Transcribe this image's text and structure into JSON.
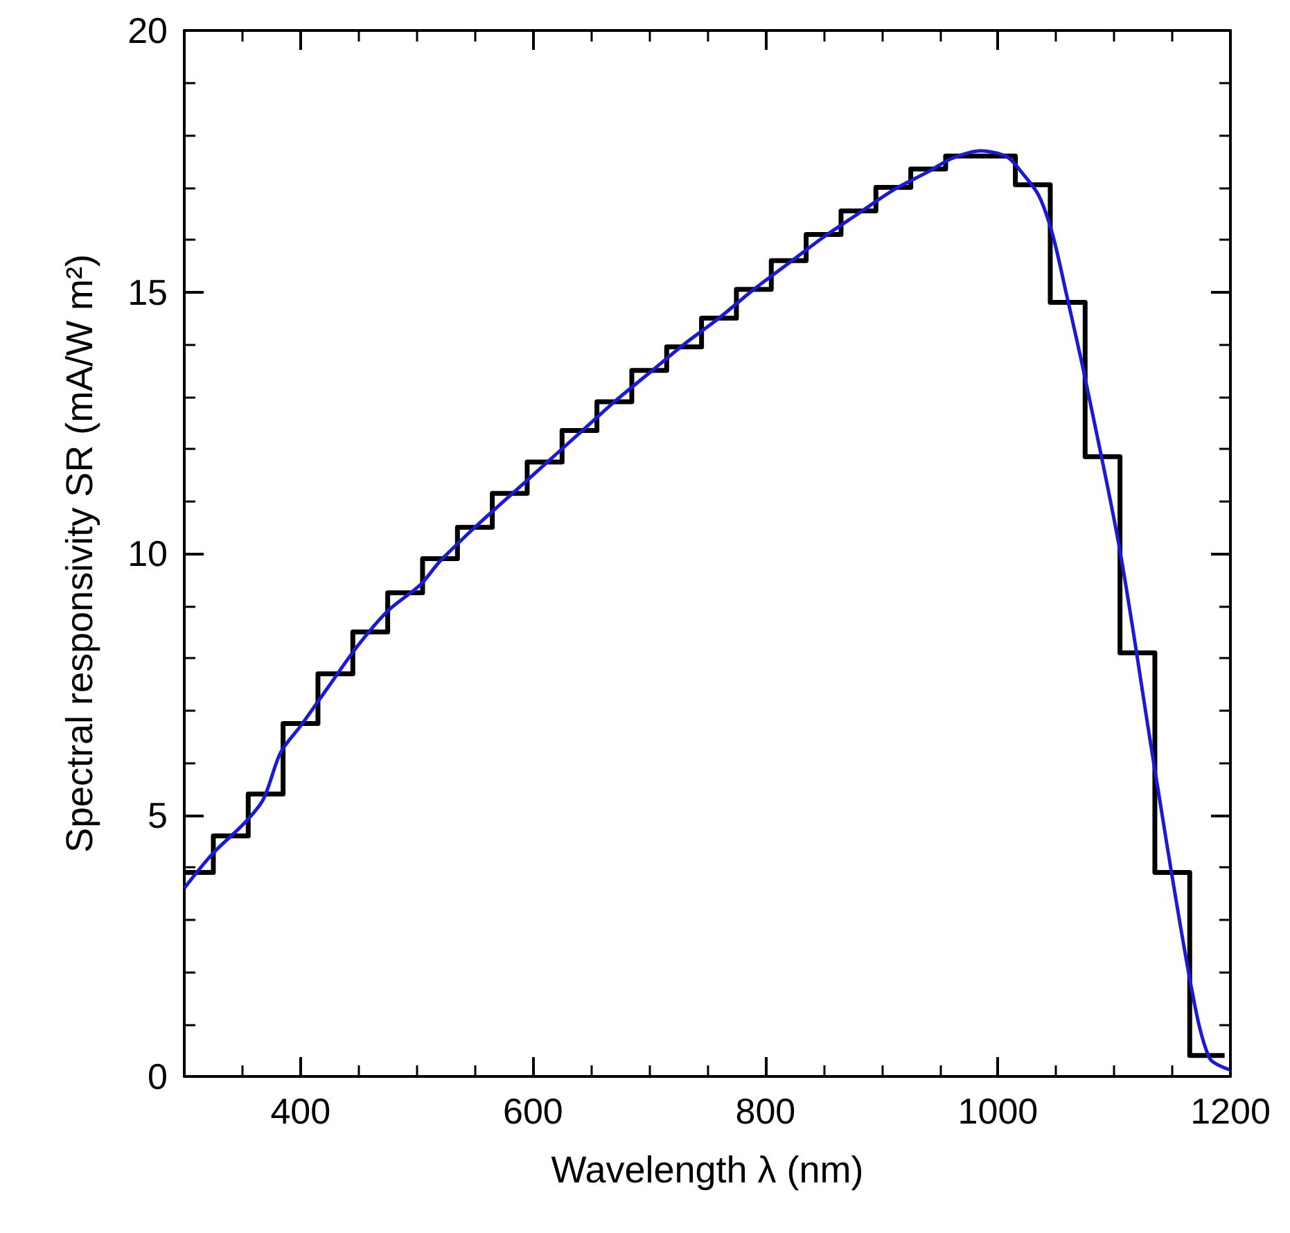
{
  "chart_data": {
    "type": "histogram",
    "xlabel": "Wavelength λ (nm)",
    "ylabel": "Spectral responsivity SR (mA/W m²)",
    "bins": [
      300,
      325,
      355,
      385,
      415,
      445,
      475,
      505,
      535,
      565,
      595,
      625,
      655,
      685,
      715,
      745,
      775,
      805,
      835,
      865,
      895,
      925,
      955,
      985,
      1015,
      1045,
      1075,
      1105,
      1135,
      1165,
      1195
    ],
    "values": [
      3.9,
      4.6,
      5.4,
      6.75,
      7.7,
      8.5,
      9.25,
      9.9,
      10.5,
      11.15,
      11.75,
      12.35,
      12.9,
      13.5,
      13.95,
      14.5,
      15.05,
      15.6,
      16.1,
      16.55,
      17.0,
      17.35,
      17.6,
      17.6,
      17.05,
      14.8,
      11.85,
      8.1,
      3.9,
      0.4
    ],
    "color": "#000000",
    "series": [
      {
        "type": "line",
        "color": "#1a1ad6",
        "x": [
          300,
          324,
          352,
          368,
          383,
          400,
          424,
          448,
          475,
          503,
          520,
          550,
          580,
          610,
          640,
          670,
          700,
          730,
          760,
          790,
          820,
          850,
          880,
          910,
          940,
          960,
          985,
          1000,
          1010,
          1020,
          1035,
          1047,
          1059,
          1075,
          1105,
          1134,
          1166,
          1182,
          1199
        ],
        "values": [
          3.6,
          4.25,
          4.85,
          5.3,
          6.2,
          6.7,
          7.45,
          8.2,
          8.9,
          9.4,
          9.85,
          10.5,
          11.1,
          11.7,
          12.3,
          12.9,
          13.45,
          14.0,
          14.5,
          15.05,
          15.55,
          16.05,
          16.5,
          16.95,
          17.3,
          17.55,
          17.7,
          17.65,
          17.55,
          17.3,
          16.85,
          16.1,
          14.95,
          13.35,
          10.05,
          6.0,
          1.75,
          0.35,
          0.13
        ]
      }
    ],
    "xlim": [
      300,
      1200
    ],
    "xticks": [
      400,
      600,
      800,
      1000,
      1200
    ],
    "ylim": [
      0,
      20
    ],
    "yticks": [
      0,
      5,
      10,
      15,
      20
    ],
    "line_style": "solid"
  }
}
